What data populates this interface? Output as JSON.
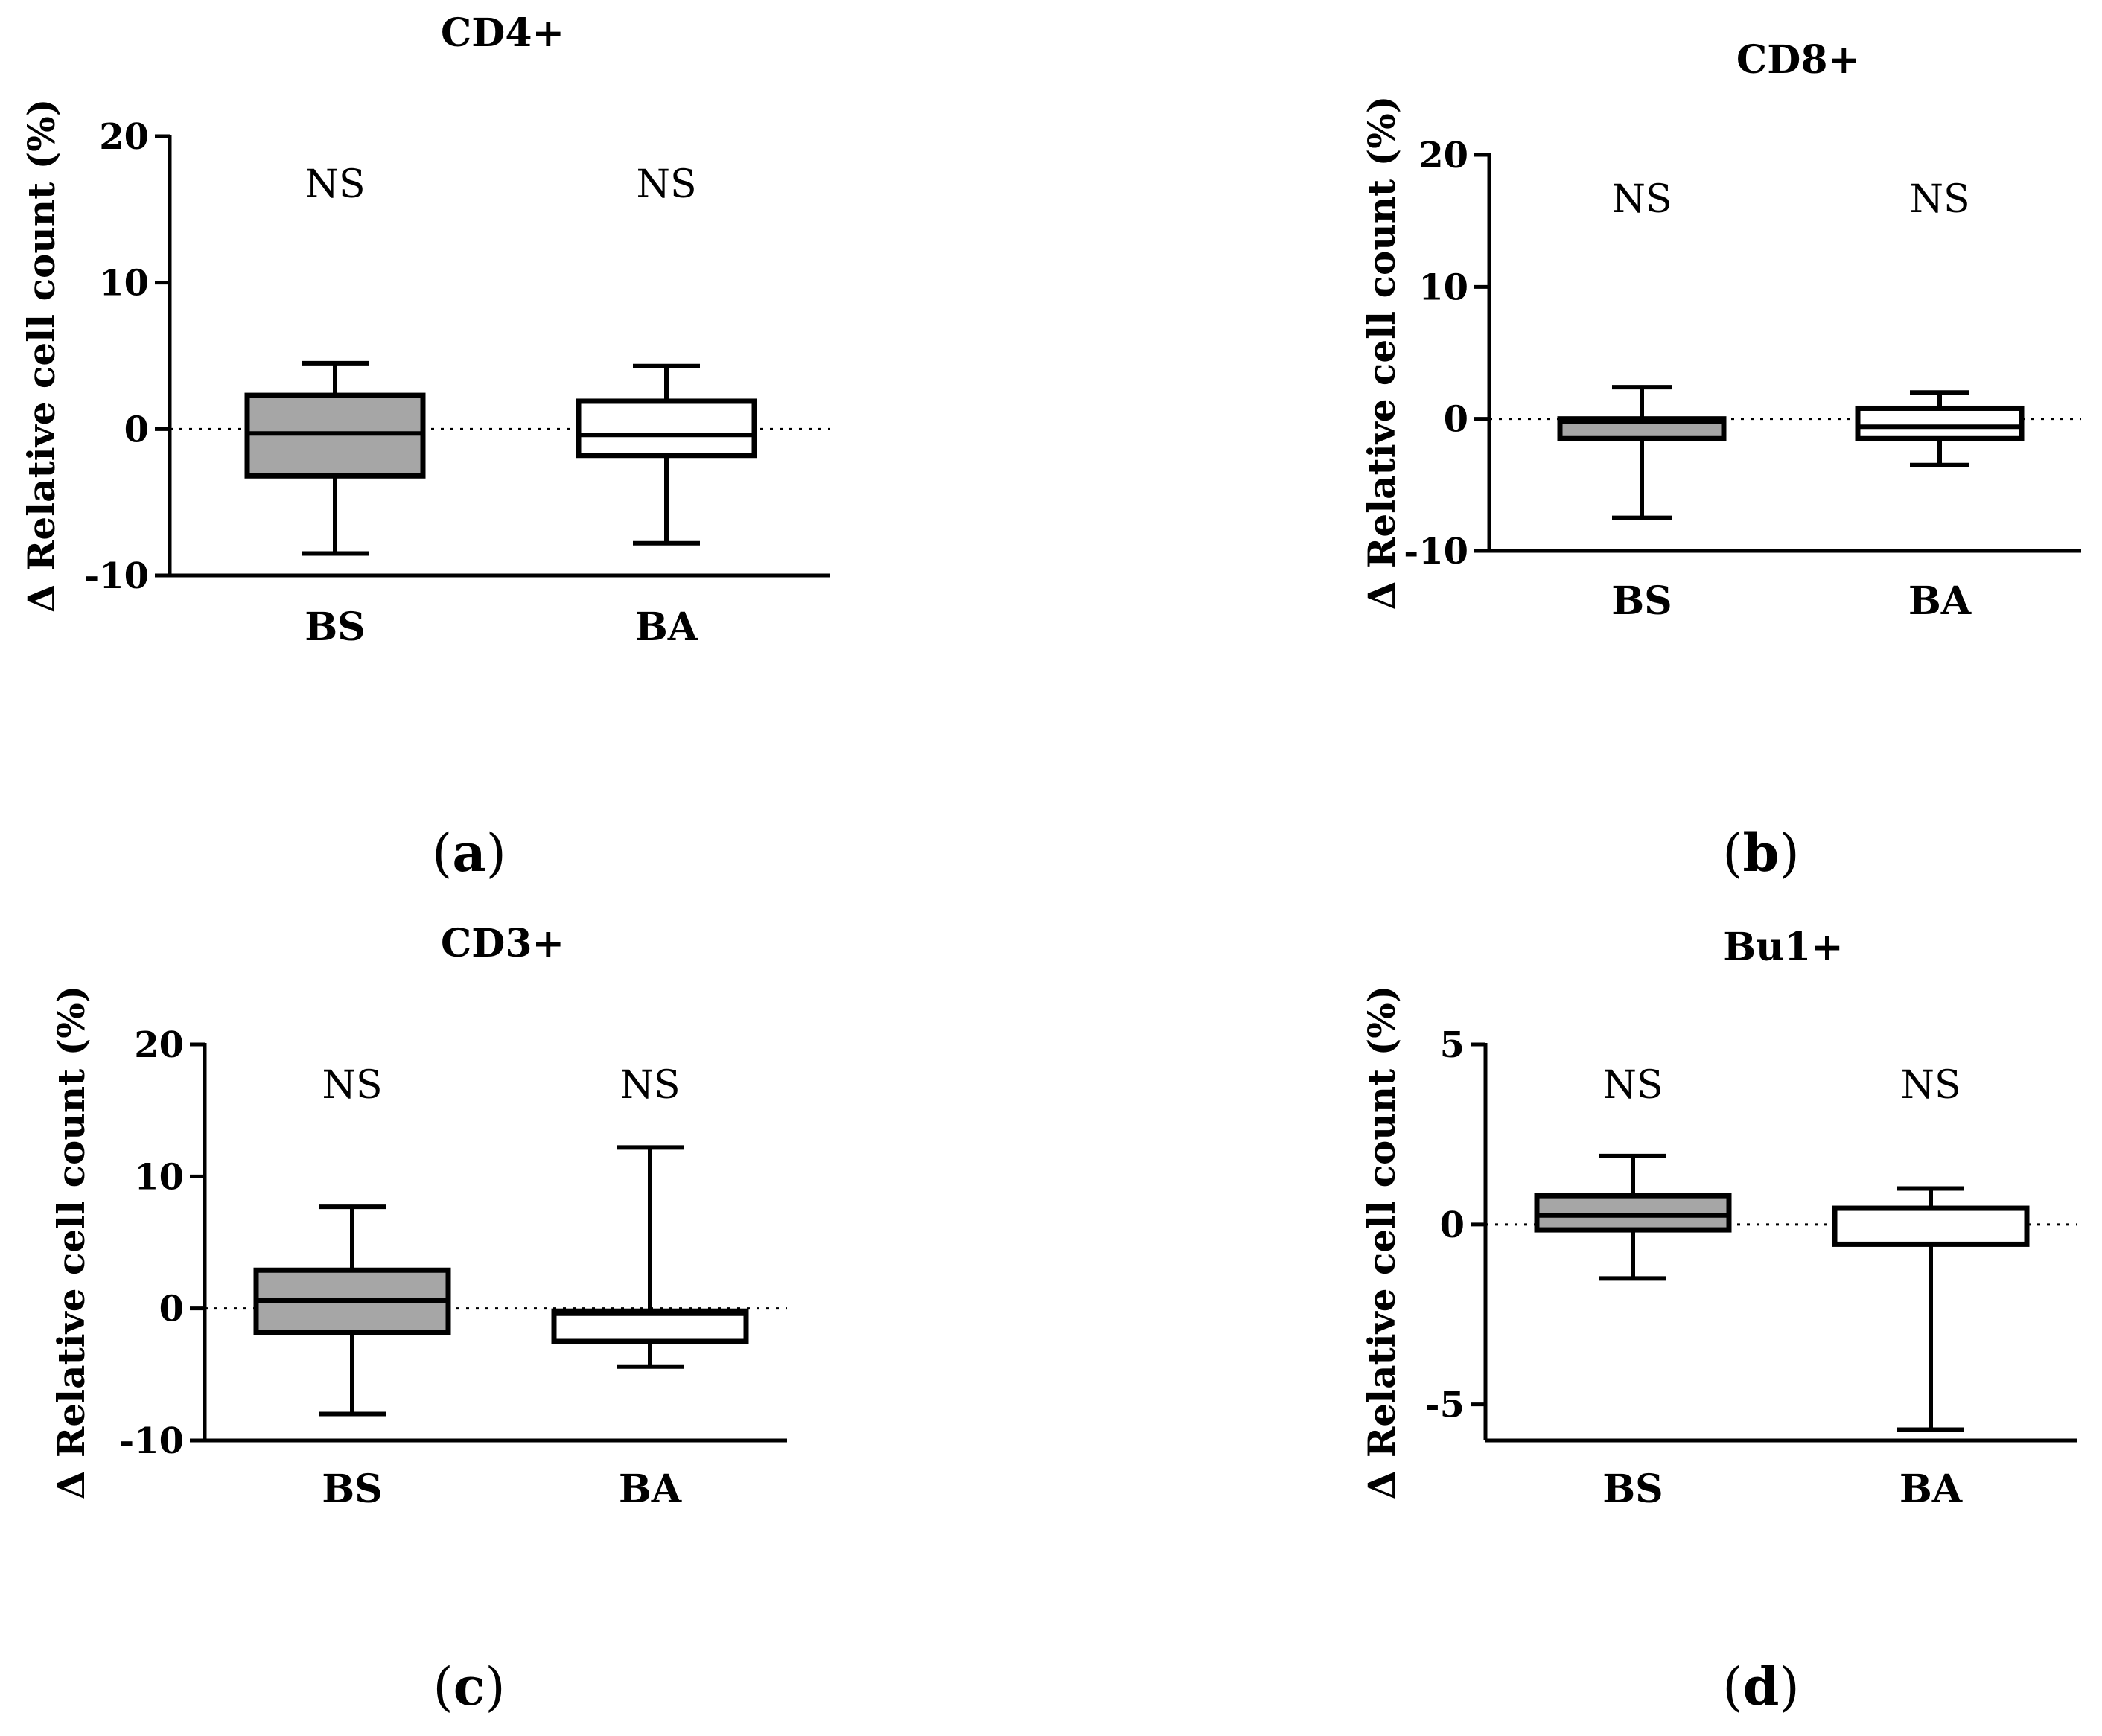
{
  "colors": {
    "filled_box": "#a6a6a6",
    "open_box": "#ffffff",
    "stroke": "#000000"
  },
  "chart_data": [
    {
      "type": "box",
      "panel_label": "a",
      "title": "CD4+",
      "ylabel": "Δ Relative cell count (%)",
      "ylim": [
        -10,
        20
      ],
      "yticks": [
        "-10",
        "0",
        "10",
        "20"
      ],
      "categories": [
        "BS",
        "BA"
      ],
      "annotations": [
        "NS",
        "NS"
      ],
      "series": [
        {
          "name": "BS",
          "min": -8.5,
          "q1": -3.2,
          "median": -0.3,
          "q3": 2.3,
          "max": 4.5,
          "fill": "filled"
        },
        {
          "name": "BA",
          "min": -7.8,
          "q1": -1.8,
          "median": -0.4,
          "q3": 1.9,
          "max": 4.3,
          "fill": "open"
        }
      ]
    },
    {
      "type": "box",
      "panel_label": "b",
      "title": "CD8+",
      "ylabel": "Δ Relative cell count (%)",
      "ylim": [
        -10,
        20
      ],
      "yticks": [
        "-10",
        "0",
        "10",
        "20"
      ],
      "categories": [
        "BS",
        "BA"
      ],
      "annotations": [
        "NS",
        "NS"
      ],
      "series": [
        {
          "name": "BS",
          "min": -7.5,
          "q1": -1.5,
          "median": -0.2,
          "q3": 0.0,
          "max": 2.4,
          "fill": "filled"
        },
        {
          "name": "BA",
          "min": -3.5,
          "q1": -1.5,
          "median": -0.6,
          "q3": 0.8,
          "max": 2.0,
          "fill": "open"
        }
      ]
    },
    {
      "type": "box",
      "panel_label": "c",
      "title": "CD3+",
      "ylabel": "Δ Relative cell count (%)",
      "ylim": [
        -10,
        20
      ],
      "yticks": [
        "-10",
        "0",
        "10",
        "20"
      ],
      "categories": [
        "BS",
        "BA"
      ],
      "annotations": [
        "NS",
        "NS"
      ],
      "series": [
        {
          "name": "BS",
          "min": -8.0,
          "q1": -1.8,
          "median": 0.6,
          "q3": 2.9,
          "max": 7.7,
          "fill": "filled"
        },
        {
          "name": "BA",
          "min": -4.4,
          "q1": -2.5,
          "median": -0.4,
          "q3": -0.2,
          "max": 12.2,
          "fill": "open"
        }
      ]
    },
    {
      "type": "box",
      "panel_label": "d",
      "title": "Bu1+",
      "ylabel": "Δ Relative cell count (%)",
      "ylim": [
        -6,
        5
      ],
      "yticks": [
        "-5",
        "0",
        "5"
      ],
      "tick_values": [
        -5,
        0,
        5
      ],
      "categories": [
        "BS",
        "BA"
      ],
      "annotations": [
        "NS",
        "NS"
      ],
      "series": [
        {
          "name": "BS",
          "min": -1.5,
          "q1": -0.15,
          "median": 0.25,
          "q3": 0.8,
          "max": 1.9,
          "fill": "filled"
        },
        {
          "name": "BA",
          "min": -5.7,
          "q1": -0.55,
          "median": -0.55,
          "q3": 0.45,
          "max": 1.0,
          "fill": "open"
        }
      ]
    }
  ]
}
